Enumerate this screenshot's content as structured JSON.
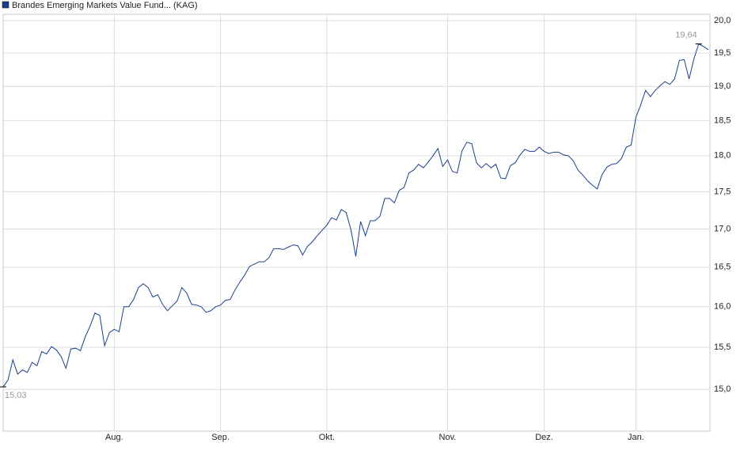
{
  "chart_data": {
    "type": "line",
    "categories": [
      null,
      null,
      null,
      null,
      null,
      null,
      null,
      null,
      null,
      null,
      null,
      null,
      null,
      null,
      null,
      null,
      null,
      null,
      null,
      null,
      null,
      null,
      null,
      "Aug.",
      null,
      null,
      null,
      null,
      null,
      null,
      null,
      null,
      null,
      null,
      null,
      null,
      null,
      null,
      null,
      null,
      null,
      null,
      null,
      null,
      null,
      "Sep.",
      null,
      null,
      null,
      null,
      null,
      null,
      null,
      null,
      null,
      null,
      null,
      null,
      null,
      null,
      null,
      null,
      null,
      null,
      null,
      null,
      null,
      "Okt.",
      null,
      null,
      null,
      null,
      null,
      null,
      null,
      null,
      null,
      null,
      null,
      null,
      null,
      null,
      null,
      null,
      null,
      null,
      null,
      null,
      null,
      null,
      null,
      null,
      "Nov.",
      null,
      null,
      null,
      null,
      null,
      null,
      null,
      null,
      null,
      null,
      null,
      null,
      null,
      null,
      null,
      null,
      null,
      null,
      null,
      "Dez.",
      null,
      null,
      null,
      null,
      null,
      null,
      null,
      null,
      null,
      null,
      null,
      null,
      null,
      null,
      null,
      null,
      null,
      null,
      "Jan.",
      null,
      null,
      null,
      null,
      null,
      null,
      null,
      null,
      null,
      null,
      null,
      null,
      null,
      null,
      null
    ],
    "series": [
      {
        "name": "Brandes Emerging Markets Value Fund... (KAG)",
        "color": "#1a3f8f",
        "values": [
          15.03,
          15.11,
          15.35,
          15.18,
          15.23,
          15.2,
          15.32,
          15.28,
          15.45,
          15.42,
          15.51,
          15.47,
          15.39,
          15.25,
          15.48,
          15.49,
          15.46,
          15.63,
          15.76,
          15.92,
          15.89,
          15.52,
          15.68,
          15.72,
          15.69,
          16.0,
          16.0,
          16.09,
          16.24,
          16.29,
          16.24,
          16.12,
          16.15,
          16.03,
          15.95,
          16.01,
          16.07,
          16.24,
          16.17,
          16.03,
          16.02,
          16.0,
          15.93,
          15.95,
          16.0,
          16.02,
          16.08,
          16.09,
          16.21,
          16.31,
          16.4,
          16.51,
          16.54,
          16.57,
          16.57,
          16.62,
          16.74,
          16.74,
          16.73,
          16.76,
          16.79,
          16.78,
          16.66,
          16.77,
          16.83,
          16.91,
          16.98,
          17.05,
          17.15,
          17.12,
          17.26,
          17.22,
          16.99,
          16.64,
          17.1,
          16.91,
          17.11,
          17.11,
          17.17,
          17.41,
          17.41,
          17.35,
          17.52,
          17.56,
          17.76,
          17.8,
          17.88,
          17.83,
          17.91,
          18.0,
          18.1,
          17.85,
          17.94,
          17.78,
          17.76,
          18.07,
          18.19,
          18.17,
          17.9,
          17.83,
          17.89,
          17.83,
          17.88,
          17.69,
          17.68,
          17.86,
          17.9,
          18.01,
          18.09,
          18.06,
          18.06,
          18.12,
          18.06,
          18.03,
          18.05,
          18.05,
          18.01,
          18.0,
          17.93,
          17.8,
          17.73,
          17.65,
          17.59,
          17.54,
          17.74,
          17.84,
          17.88,
          17.89,
          17.96,
          18.12,
          18.15,
          18.55,
          18.73,
          18.94,
          18.85,
          18.94,
          19.01,
          19.07,
          19.03,
          19.11,
          19.39,
          19.4,
          19.11,
          19.41,
          19.64,
          19.6,
          19.55
        ],
        "value_labels": [
          "15,03",
          null,
          null,
          null,
          null,
          null,
          null,
          null,
          null,
          null,
          null,
          null,
          null,
          null,
          null,
          null,
          null,
          null,
          null,
          null,
          null,
          null,
          null,
          null,
          null,
          null,
          null,
          null,
          null,
          null,
          null,
          null,
          null,
          null,
          null,
          null,
          null,
          null,
          null,
          null,
          null,
          null,
          null,
          null,
          null,
          null,
          null,
          null,
          null,
          null,
          null,
          null,
          null,
          null,
          null,
          null,
          null,
          null,
          null,
          null,
          null,
          null,
          null,
          null,
          null,
          null,
          null,
          null,
          null,
          null,
          null,
          null,
          null,
          null,
          null,
          null,
          null,
          null,
          null,
          null,
          null,
          null,
          null,
          null,
          null,
          null,
          null,
          null,
          null,
          null,
          null,
          null,
          null,
          null,
          null,
          null,
          null,
          null,
          null,
          null,
          null,
          null,
          null,
          null,
          null,
          null,
          null,
          null,
          null,
          null,
          null,
          null,
          null,
          null,
          null,
          null,
          null,
          null,
          null,
          null,
          null,
          null,
          null,
          null,
          null,
          null,
          null,
          null,
          null,
          null,
          null,
          null,
          null,
          null,
          null,
          null,
          null,
          null,
          null,
          null,
          null,
          null,
          null,
          null,
          "19,64",
          null,
          null
        ]
      }
    ],
    "ylim": [
      14.52,
      20.1
    ],
    "yticks": [
      {
        "value": 15,
        "label": "15,0"
      },
      {
        "value": 15.5,
        "label": "15,5"
      },
      {
        "value": 16,
        "label": "16,0"
      },
      {
        "value": 16.5,
        "label": "16,5"
      },
      {
        "value": 17,
        "label": "17,0"
      },
      {
        "value": 17.5,
        "label": "17,5"
      },
      {
        "value": 18,
        "label": "18,0"
      },
      {
        "value": 18.5,
        "label": "18,5"
      },
      {
        "value": 19,
        "label": "19,0"
      },
      {
        "value": 19.5,
        "label": "19,5"
      },
      {
        "value": 20,
        "label": "20,0"
      }
    ],
    "log_scale": true,
    "grid": true,
    "legend": "top-left"
  }
}
